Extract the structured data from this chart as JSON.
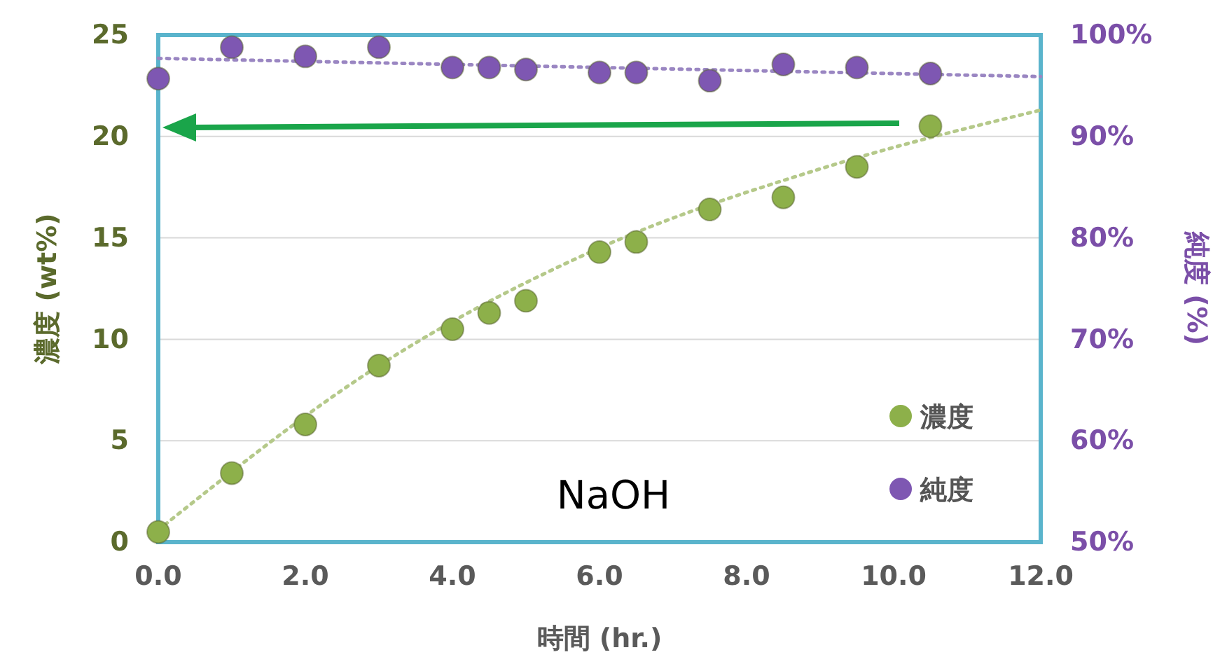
{
  "chart_data": {
    "type": "scatter",
    "xlabel": "時間 (hr.)",
    "ylabel": "濃度 (wt%)",
    "y2label": "純度 (%)",
    "xlim": [
      0,
      12
    ],
    "xticks": [
      {
        "value": 0,
        "label": "0.0"
      },
      {
        "value": 2,
        "label": "2.0"
      },
      {
        "value": 4,
        "label": "4.0"
      },
      {
        "value": 6,
        "label": "6.0"
      },
      {
        "value": 8,
        "label": "8.0"
      },
      {
        "value": 10,
        "label": "10.0"
      },
      {
        "value": 12,
        "label": "12.0"
      }
    ],
    "ylim": [
      0,
      25
    ],
    "yticks": [
      0,
      5,
      10,
      15,
      20,
      25
    ],
    "y2lim": [
      50,
      100
    ],
    "y2ticks": [
      {
        "value": 50,
        "label": "50%"
      },
      {
        "value": 60,
        "label": "60%"
      },
      {
        "value": 70,
        "label": "70%"
      },
      {
        "value": 80,
        "label": "80%"
      },
      {
        "value": 90,
        "label": "90%"
      },
      {
        "value": 100,
        "label": "100%"
      }
    ],
    "grid": "y",
    "legend": "bottom right",
    "marker": "circle",
    "annotations": [
      "NaOH"
    ],
    "series": [
      {
        "type": "line",
        "line_style": "dotted",
        "marker": "none",
        "color": "#b5c98a",
        "x": [
          0,
          3,
          6,
          9,
          12
        ],
        "values": [
          0.6,
          8.7,
          14.5,
          18.4,
          21.3
        ]
      },
      {
        "type": "line",
        "line_style": "dotted",
        "marker": "none",
        "axis": "y2",
        "color": "#9a86c2",
        "x": [
          0,
          6,
          12
        ],
        "values": [
          97.7,
          96.8,
          95.9
        ]
      },
      {
        "name": "濃度",
        "color": "#8db04a",
        "x": [
          0,
          1,
          2,
          3,
          4,
          4.5,
          5,
          6,
          6.5,
          7.5,
          8.5,
          9.5,
          10.5
        ],
        "values": [
          0.5,
          3.4,
          5.8,
          8.7,
          10.5,
          11.3,
          11.9,
          14.3,
          14.8,
          16.4,
          17.0,
          18.5,
          20.5
        ]
      },
      {
        "name": "純度",
        "color": "#7e57b2",
        "axis": "y2",
        "x": [
          0,
          1,
          2,
          3,
          4,
          4.5,
          5,
          6,
          6.5,
          7.5,
          8.5,
          9.5,
          10.5
        ],
        "values": [
          95.7,
          98.8,
          97.9,
          98.8,
          96.8,
          96.8,
          96.6,
          96.3,
          96.3,
          95.5,
          97.1,
          96.8,
          96.2
        ]
      }
    ]
  }
}
